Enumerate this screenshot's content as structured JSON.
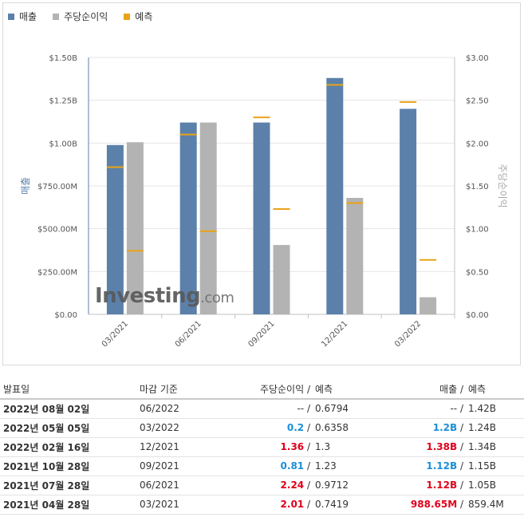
{
  "colors": {
    "revenue": "#5b80aa",
    "eps": "#b3b3b3",
    "forecast": "#e8a317",
    "beat": "#e0001a",
    "miss": "#1a8fd9"
  },
  "legend": [
    {
      "label": "매출",
      "color": "#5b80aa"
    },
    {
      "label": "주당순이익",
      "color": "#b3b3b3"
    },
    {
      "label": "예측",
      "color": "#e8a317"
    }
  ],
  "chart_data": {
    "type": "bar",
    "categories": [
      "03/2021",
      "06/2021",
      "09/2021",
      "12/2021",
      "03/2022"
    ],
    "series": [
      {
        "name": "매출",
        "axis": "left",
        "values": [
          988.65,
          1120,
          1120,
          1380,
          1200
        ],
        "forecast": [
          859.4,
          1050,
          1150,
          1340,
          1240
        ]
      },
      {
        "name": "주당순이익",
        "axis": "right",
        "values": [
          2.01,
          2.24,
          0.81,
          1.36,
          0.2
        ],
        "forecast": [
          0.7419,
          0.9712,
          1.23,
          1.3,
          0.6358
        ]
      }
    ],
    "left_axis": {
      "label": "매출",
      "ylim": [
        0,
        1500
      ],
      "ticks": [
        0,
        250,
        500,
        750,
        1000,
        1250,
        1500
      ],
      "tick_labels": [
        "$0.00",
        "$250.00M",
        "$500.00M",
        "$750.00M",
        "$1.00B",
        "$1.25B",
        "$1.50B"
      ]
    },
    "right_axis": {
      "label": "주당순이익",
      "ylim": [
        0,
        3
      ],
      "ticks": [
        0,
        0.5,
        1,
        1.5,
        2,
        2.5,
        3
      ],
      "tick_labels": [
        "$0.00",
        "$0.50",
        "$1.00",
        "$1.50",
        "$2.00",
        "$2.50",
        "$3.00"
      ]
    }
  },
  "watermark": {
    "brand": "Investing",
    "suffix": ".com"
  },
  "table": {
    "headers": {
      "date": "발표일",
      "period": "마감 기준",
      "eps": "주당순이익",
      "eps_sep": " /",
      "eps_forecast": "예측",
      "revenue": "매출",
      "revenue_sep": " /",
      "revenue_forecast": "예측"
    },
    "rows": [
      {
        "date": "2022년 08월 02일",
        "period": "06/2022",
        "eps": "--",
        "eps_status": "neu",
        "eps_forecast": "0.6794",
        "revenue": "--",
        "revenue_status": "neu",
        "revenue_forecast": "1.42B"
      },
      {
        "date": "2022년 05월 05일",
        "period": "03/2022",
        "eps": "0.2",
        "eps_status": "neg",
        "eps_forecast": "0.6358",
        "revenue": "1.2B",
        "revenue_status": "neg",
        "revenue_forecast": "1.24B"
      },
      {
        "date": "2022년 02월 16일",
        "period": "12/2021",
        "eps": "1.36",
        "eps_status": "pos",
        "eps_forecast": "1.3",
        "revenue": "1.38B",
        "revenue_status": "pos",
        "revenue_forecast": "1.34B"
      },
      {
        "date": "2021년 10월 28일",
        "period": "09/2021",
        "eps": "0.81",
        "eps_status": "neg",
        "eps_forecast": "1.23",
        "revenue": "1.12B",
        "revenue_status": "neg",
        "revenue_forecast": "1.15B"
      },
      {
        "date": "2021년 07월 28일",
        "period": "06/2021",
        "eps": "2.24",
        "eps_status": "pos",
        "eps_forecast": "0.9712",
        "revenue": "1.12B",
        "revenue_status": "pos",
        "revenue_forecast": "1.05B"
      },
      {
        "date": "2021년 04월 28일",
        "period": "03/2021",
        "eps": "2.01",
        "eps_status": "pos",
        "eps_forecast": "0.7419",
        "revenue": "988.65M",
        "revenue_status": "pos",
        "revenue_forecast": "859.4M"
      }
    ]
  }
}
